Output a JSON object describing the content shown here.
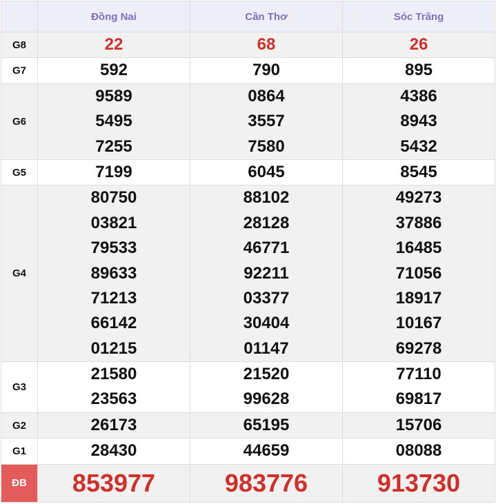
{
  "header": {
    "provinces": [
      "Đồng Nai",
      "Cần Thơ",
      "Sóc Trăng"
    ]
  },
  "rows": [
    {
      "label": "G8",
      "cols": [
        [
          "22"
        ],
        [
          "68"
        ],
        [
          "26"
        ]
      ],
      "highlight": true
    },
    {
      "label": "G7",
      "cols": [
        [
          "592"
        ],
        [
          "790"
        ],
        [
          "895"
        ]
      ]
    },
    {
      "label": "G6",
      "cols": [
        [
          "9589",
          "5495",
          "7255"
        ],
        [
          "0864",
          "3557",
          "7580"
        ],
        [
          "4386",
          "8943",
          "5432"
        ]
      ]
    },
    {
      "label": "G5",
      "cols": [
        [
          "7199"
        ],
        [
          "6045"
        ],
        [
          "8545"
        ]
      ]
    },
    {
      "label": "G4",
      "cols": [
        [
          "80750",
          "03821",
          "79533",
          "89633",
          "71213",
          "66142",
          "01215"
        ],
        [
          "88102",
          "28128",
          "46771",
          "92211",
          "03377",
          "30404",
          "01147"
        ],
        [
          "49273",
          "37886",
          "16485",
          "71056",
          "18917",
          "10167",
          "69278"
        ]
      ]
    },
    {
      "label": "G3",
      "cols": [
        [
          "21580",
          "23563"
        ],
        [
          "21520",
          "99628"
        ],
        [
          "77110",
          "69817"
        ]
      ]
    },
    {
      "label": "G2",
      "cols": [
        [
          "26173"
        ],
        [
          "65195"
        ],
        [
          "15706"
        ]
      ]
    },
    {
      "label": "G1",
      "cols": [
        [
          "28430"
        ],
        [
          "44659"
        ],
        [
          "08088"
        ]
      ]
    },
    {
      "label": "ĐB",
      "cols": [
        [
          "853977"
        ],
        [
          "983776"
        ],
        [
          "913730"
        ]
      ],
      "special": true
    }
  ],
  "colors": {
    "accent_red": "#d0302a",
    "header_text": "#7a72bf",
    "special_label_bg": "#e35b5b"
  }
}
